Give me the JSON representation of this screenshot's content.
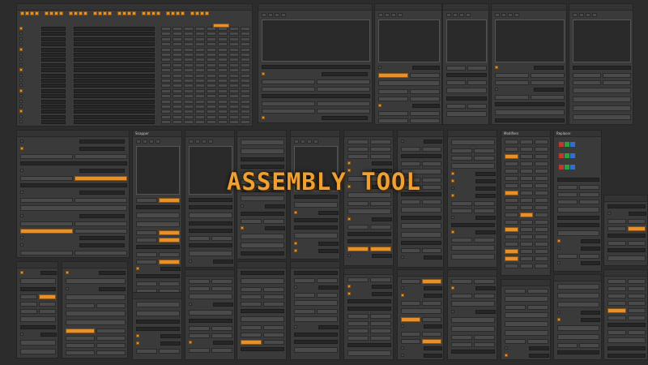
{
  "title": "ASSEMBLY TOOL",
  "colors": {
    "background": "#2c2c2c",
    "panel": "#3a3a3a",
    "accent": "#e8912a",
    "x_axis": "#c0392b",
    "y_axis": "#2e9e3e",
    "z_axis": "#2f6fd0"
  },
  "panels": {
    "snapper": "Snapper",
    "modifiers": "Modifiers",
    "replacer": "Replacer"
  }
}
